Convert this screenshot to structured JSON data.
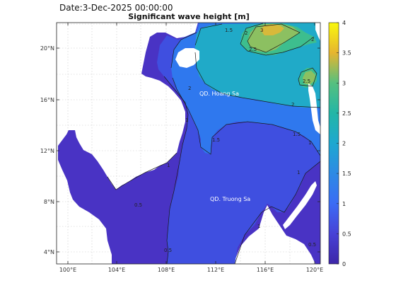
{
  "header": {
    "date": "Date:3-Dec-2025 00:00:00",
    "title": "Significant wave height [m]"
  },
  "map": {
    "x_ticks": [
      "100°E",
      "104°E",
      "108°E",
      "112°E",
      "116°E",
      "120°E"
    ],
    "y_ticks": [
      "20°N",
      "16°N",
      "12°N",
      "8°N",
      "4°N"
    ],
    "labels": {
      "hoang_sa": "QD. Hoang Sa",
      "truong_sa": "QD. Truong Sa"
    },
    "contour_labels": [
      "1.5",
      "2",
      "2",
      "2.5",
      "3",
      "2.5",
      "2",
      "1.5",
      "1.5",
      "2",
      "1",
      "1",
      "1",
      "0.5",
      "1",
      "1",
      "0.5",
      "0.5"
    ]
  },
  "colorbar": {
    "ticks": [
      "4",
      "3.5",
      "3",
      "2.5",
      "2",
      "1.5",
      "1",
      "0.5",
      "0"
    ],
    "colors": [
      "#3d26a8",
      "#4742d6",
      "#3b6cf5",
      "#2d8ae4",
      "#1ea8d0",
      "#23b6a6",
      "#56c07f",
      "#a8be56",
      "#e6b52f",
      "#f8db22",
      "#f9f80d"
    ]
  }
}
